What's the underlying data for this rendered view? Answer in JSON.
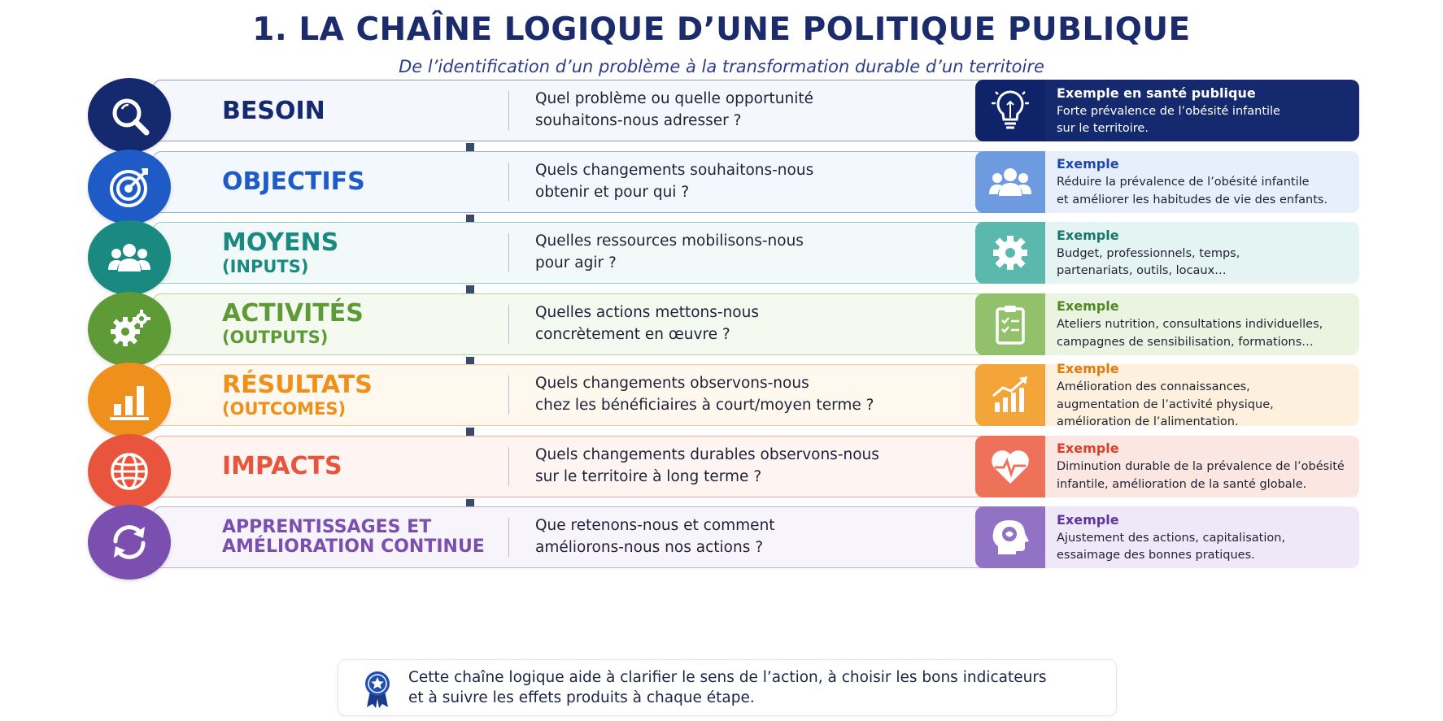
{
  "title": "1. LA CHAÎNE LOGIQUE D’UNE POLITIQUE PUBLIQUE",
  "subtitle": "De l’identification d’un problème à la transformation durable d’un territoire",
  "rows": [
    {
      "label": "BESOIN",
      "sublabel": "",
      "question": "Quel problème ou quelle opportunité\nsouhaitons-nous adresser ?",
      "icon": "magnifier-icon",
      "ex_icon": "lightbulb-icon",
      "ex_title": "Exemple en santé publique",
      "ex_text": "Forte prévalence de l’obésité infantile\nsur le territoire.",
      "color": "#14296e",
      "band_bg": "#f5f7fc",
      "band_border": "#8f9ccc",
      "sq_color": "#0f2468",
      "ex_bg": "#14296e",
      "ex_title_color": "#ffffff",
      "ex_text_color": "#ffffff"
    },
    {
      "label": "OBJECTIFS",
      "sublabel": "",
      "question": "Quels changements souhaitons-nous\nobtenir et pour qui ?",
      "icon": "target-icon",
      "ex_icon": "group-icon",
      "ex_title": "Exemple",
      "ex_text": "Réduire la prévalence de l’obésité infantile\net améliorer les habitudes de vie des enfants.",
      "color": "#1e5bc7",
      "band_bg": "#f3f7fe",
      "band_border": "#8fb0e6",
      "sq_color": "#6e9be0",
      "ex_bg": "#e6effb",
      "ex_title_color": "#1e47b0",
      "ex_text_color": "#1f2236"
    },
    {
      "label": "MOYENS",
      "sublabel": "(INPUTS)",
      "question": "Quelles ressources mobilisons-nous\npour agir ?",
      "icon": "people-icon",
      "ex_icon": "gear-icon",
      "ex_title": "Exemple",
      "ex_text": "Budget, professionnels, temps,\npartenariats, outils, locaux…",
      "color": "#1a8a80",
      "band_bg": "#f2faf9",
      "band_border": "#8fcfc7",
      "sq_color": "#5bb8ad",
      "ex_bg": "#e4f4f2",
      "ex_title_color": "#17766d",
      "ex_text_color": "#1f2236"
    },
    {
      "label": "ACTIVITÉS",
      "sublabel": "(OUTPUTS)",
      "question": "Quelles actions mettons-nous\nconcrètement en œuvre ?",
      "icon": "gears-icon",
      "ex_icon": "clipboard-icon",
      "ex_title": "Exemple",
      "ex_text": "Ateliers nutrition, consultations individuelles,\ncampagnes de sensibilisation, formations…",
      "color": "#5e9a36",
      "band_bg": "#f5faf0",
      "band_border": "#b5d69a",
      "sq_color": "#93c06b",
      "ex_bg": "#eaf4e0",
      "ex_title_color": "#4c8a24",
      "ex_text_color": "#1f2236"
    },
    {
      "label": "RÉSULTATS",
      "sublabel": "(OUTCOMES)",
      "question": "Quels changements observons-nous\nchez les bénéficiaires à court/moyen terme ?",
      "icon": "bar-chart-icon",
      "ex_icon": "growth-chart-icon",
      "ex_title": "Exemple",
      "ex_text": "Amélioration des connaissances,\naugmentation de l’activité physique,\namélioration de l’alimentation.",
      "color": "#f0901c",
      "band_bg": "#fff8ee",
      "band_border": "#f6c98a",
      "sq_color": "#f4a53a",
      "ex_bg": "#fdf0dc",
      "ex_title_color": "#e07b0c",
      "ex_text_color": "#1f2236"
    },
    {
      "label": "IMPACTS",
      "sublabel": "",
      "question": "Quels changements durables observons-nous\nsur le territoire à long terme ?",
      "icon": "globe-icon",
      "ex_icon": "heart-pulse-icon",
      "ex_title": "Exemple",
      "ex_text": "Diminution durable de la prévalence de l’obésité\ninfantile, amélioration de la santé globale.",
      "color": "#e8553c",
      "band_bg": "#fef4f2",
      "band_border": "#f2a89a",
      "sq_color": "#ee7259",
      "ex_bg": "#fce6e2",
      "ex_title_color": "#d8402a",
      "ex_text_color": "#1f2236"
    },
    {
      "label": "APPRENTISSAGES ET",
      "sublabel": "AMÉLIORATION CONTINUE",
      "question": "Que retenons-nous et comment\naméliorons-nous nos actions ?",
      "icon": "refresh-icon",
      "ex_icon": "head-brain-icon",
      "ex_title": "Exemple",
      "ex_text": "Ajustement des actions, capitalisation,\nessaimage des bonnes pratiques.",
      "color": "#7a4fb0",
      "band_bg": "#f8f4fc",
      "band_border": "#c4ace2",
      "sq_color": "#9272c4",
      "ex_bg": "#efe8f8",
      "ex_title_color": "#5d36a0",
      "ex_text_color": "#1f2236"
    }
  ],
  "footer": {
    "icon": "award-medal-icon",
    "text": "Cette chaîne logique aide à clarifier le sens de l’action, à choisir les bons indicateurs\net à suivre les effets produits à chaque étape."
  }
}
